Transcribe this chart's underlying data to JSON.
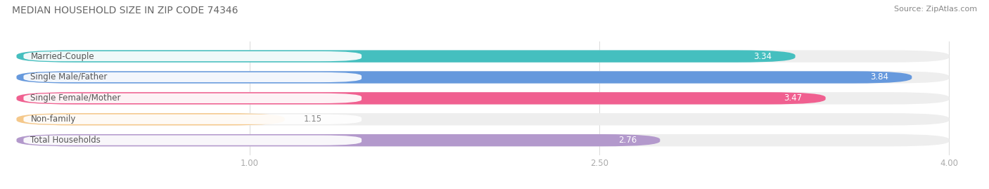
{
  "title": "MEDIAN HOUSEHOLD SIZE IN ZIP CODE 74346",
  "source": "Source: ZipAtlas.com",
  "categories": [
    "Married-Couple",
    "Single Male/Father",
    "Single Female/Mother",
    "Non-family",
    "Total Households"
  ],
  "values": [
    3.34,
    3.84,
    3.47,
    1.15,
    2.76
  ],
  "bar_colors": [
    "#45BFBF",
    "#6699DD",
    "#F06090",
    "#F5C88A",
    "#B399CC"
  ],
  "background_color": "#ffffff",
  "bar_bg_color": "#eeeeee",
  "xlim_data": [
    0,
    4.0
  ],
  "xticks": [
    1.0,
    2.5,
    4.0
  ],
  "title_fontsize": 10,
  "source_fontsize": 8,
  "label_fontsize": 8.5,
  "value_fontsize": 8.5,
  "label_text_color": "#555555",
  "value_color_inside": "#ffffff",
  "value_color_outside": "#888888",
  "tick_color": "#aaaaaa",
  "grid_color": "#dddddd"
}
